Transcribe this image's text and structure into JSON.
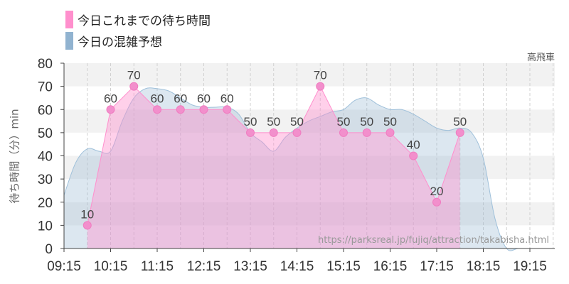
{
  "legend": [
    {
      "label": "今日これまでの待ち時間",
      "color": "#ff8fcd"
    },
    {
      "label": "今日の混雑予想",
      "color": "#91b3d0"
    }
  ],
  "attraction_name": "高飛車",
  "source_url": "https://parksreal.jp/fujiq/attraction/takabisha.html",
  "chart_data": {
    "type": "area",
    "ylabel": "待ち時間（分）min",
    "ylim": [
      0,
      80
    ],
    "yticks": [
      0,
      10,
      20,
      30,
      40,
      50,
      60,
      70,
      80
    ],
    "x_tick_labels": [
      "09:15",
      "10:15",
      "11:15",
      "12:15",
      "13:15",
      "14:15",
      "15:15",
      "16:15",
      "17:15",
      "18:15",
      "19:15"
    ],
    "grid": true,
    "series": [
      {
        "name": "今日これまでの待ち時間",
        "color": "#ff8fcd",
        "x": [
          "09:45",
          "10:15",
          "10:45",
          "11:15",
          "11:45",
          "12:15",
          "12:45",
          "13:15",
          "13:45",
          "14:15",
          "14:45",
          "15:15",
          "15:45",
          "16:15",
          "16:45",
          "17:15",
          "17:45"
        ],
        "values": [
          10,
          60,
          70,
          60,
          60,
          60,
          60,
          50,
          50,
          50,
          70,
          50,
          50,
          50,
          40,
          20,
          50
        ]
      },
      {
        "name": "今日の混雑予想",
        "color": "#91b3d0",
        "x": [
          "09:15",
          "09:30",
          "09:45",
          "10:00",
          "10:15",
          "10:30",
          "10:45",
          "11:00",
          "11:15",
          "11:30",
          "11:45",
          "12:00",
          "12:15",
          "12:30",
          "12:45",
          "13:00",
          "13:15",
          "13:30",
          "13:45",
          "14:00",
          "14:15",
          "14:30",
          "14:45",
          "15:00",
          "15:15",
          "15:30",
          "15:45",
          "16:00",
          "16:15",
          "16:30",
          "16:45",
          "17:00",
          "17:15",
          "17:30",
          "17:45",
          "18:00",
          "18:15",
          "18:30",
          "18:45",
          "19:00",
          "19:15",
          "19:30"
        ],
        "values": [
          23,
          37,
          43,
          42,
          42,
          55,
          65,
          69,
          69,
          68,
          65,
          62,
          61,
          61,
          61,
          58,
          50,
          46,
          42,
          48,
          52,
          55,
          57,
          59,
          60,
          64,
          65,
          62,
          60,
          60,
          58,
          55,
          52,
          51,
          52,
          50,
          39,
          13,
          0,
          0,
          0,
          0
        ]
      }
    ]
  }
}
